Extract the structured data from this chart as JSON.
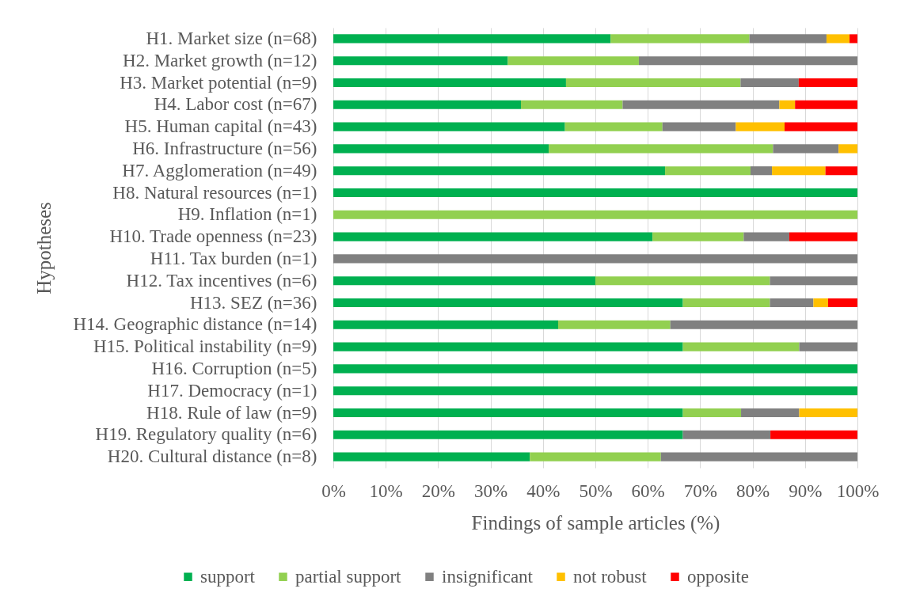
{
  "chart_data": {
    "type": "bar",
    "orientation": "horizontal",
    "stacked": true,
    "xlabel": "Findings of sample articles (%)",
    "ylabel": "Hypotheses",
    "categories": [
      "H1. Market size (n=68)",
      "H2. Market growth (n=12)",
      "H3. Market potential (n=9)",
      "H4. Labor cost (n=67)",
      "H5. Human capital (n=43)",
      "H6. Infrastructure (n=56)",
      "H7. Agglomeration (n=49)",
      "H8. Natural resources (n=1)",
      "H9. Inflation (n=1)",
      "H10. Trade openness (n=23)",
      "H11. Tax burden (n=1)",
      "H12. Tax incentives (n=6)",
      "H13. SEZ (n=36)",
      "H14. Geographic distance (n=14)",
      "H15. Political instability (n=9)",
      "H16. Corruption (n=5)",
      "H17. Democracy (n=1)",
      "H18. Rule of law (n=9)",
      "H19. Regulatory quality (n=6)",
      "H20. Cultural distance (n=8)"
    ],
    "series": [
      {
        "name": "support",
        "color": "#00b050",
        "values": [
          52.9,
          33.3,
          44.4,
          35.8,
          44.2,
          41.1,
          63.3,
          100,
          null,
          60.9,
          null,
          50.0,
          66.7,
          42.9,
          66.7,
          100,
          100,
          66.7,
          66.7,
          37.5
        ]
      },
      {
        "name": "partial support",
        "color": "#92d050",
        "values": [
          26.5,
          25.0,
          33.3,
          19.4,
          18.6,
          42.8,
          16.3,
          null,
          100,
          17.4,
          null,
          33.3,
          16.6,
          21.4,
          22.2,
          null,
          null,
          11.1,
          null,
          25.0
        ]
      },
      {
        "name": "insignificant",
        "color": "#808080",
        "values": [
          14.7,
          41.7,
          11.1,
          29.9,
          14.0,
          12.5,
          4.1,
          null,
          null,
          8.7,
          100,
          16.7,
          8.3,
          35.7,
          11.1,
          null,
          null,
          11.1,
          16.7,
          37.5
        ]
      },
      {
        "name": "not robust",
        "color": "#ffc000",
        "values": [
          4.4,
          null,
          null,
          3.0,
          9.3,
          3.6,
          10.2,
          null,
          null,
          null,
          null,
          null,
          2.8,
          null,
          null,
          null,
          null,
          11.1,
          null,
          null
        ]
      },
      {
        "name": "opposite",
        "color": "#ff0000",
        "values": [
          1.5,
          null,
          11.2,
          11.9,
          13.9,
          null,
          6.1,
          null,
          null,
          13.0,
          null,
          null,
          5.6,
          null,
          null,
          null,
          null,
          null,
          16.6,
          null
        ]
      }
    ],
    "xlim": [
      0,
      100
    ],
    "xticks": [
      {
        "value": 0,
        "label": "0%"
      },
      {
        "value": 10,
        "label": "10%"
      },
      {
        "value": 20,
        "label": "20%"
      },
      {
        "value": 30,
        "label": "30%"
      },
      {
        "value": 40,
        "label": "40%"
      },
      {
        "value": 50,
        "label": "50%"
      },
      {
        "value": 60,
        "label": "60%"
      },
      {
        "value": 70,
        "label": "70%"
      },
      {
        "value": 80,
        "label": "80%"
      },
      {
        "value": 90,
        "label": "90%"
      },
      {
        "value": 100,
        "label": "100%"
      }
    ],
    "grid": "x",
    "legend": "bottom"
  }
}
